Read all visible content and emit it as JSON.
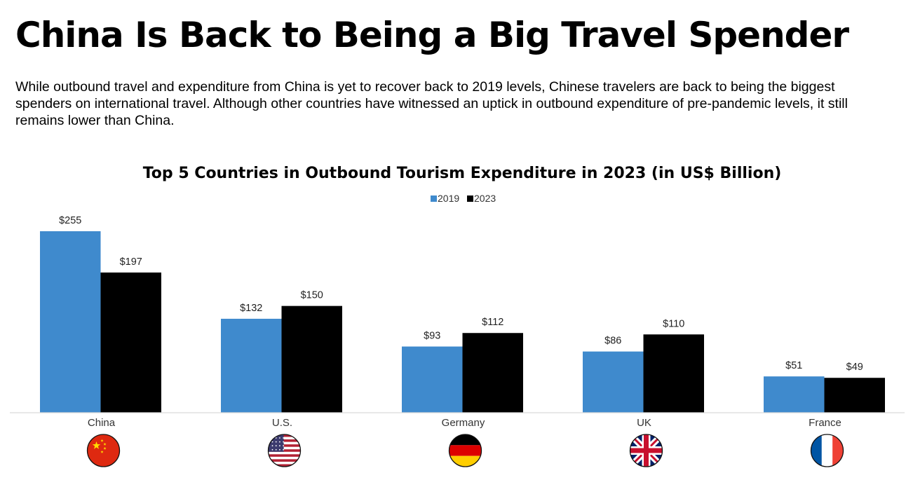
{
  "page": {
    "headline": "China Is Back to Being a Big Travel Spender",
    "subtitle": "While outbound travel and expenditure from China is yet to recover back to 2019 levels, Chinese travelers are back to being the biggest spenders on international travel. Although other countries have witnessed an uptick in outbound expenditure of pre-pandemic levels, it still remains lower than China."
  },
  "chart_data": {
    "type": "bar",
    "title": "Top 5 Countries in Outbound Tourism Expenditure in 2023 (in US$ Billion)",
    "categories": [
      "China",
      "U.S.",
      "Germany",
      "UK",
      "France"
    ],
    "series": [
      {
        "name": "2019",
        "color": "#3f8acd",
        "values": [
          255,
          132,
          93,
          86,
          51
        ],
        "labels": [
          "$255",
          "$132",
          "$93",
          "$86",
          "$51"
        ]
      },
      {
        "name": "2023",
        "color": "#000000",
        "values": [
          197,
          150,
          112,
          110,
          49
        ],
        "labels": [
          "$197",
          "$150",
          "$112",
          "$110",
          "$49"
        ]
      }
    ],
    "ylim": [
      0,
      255
    ],
    "grid": false,
    "legend": "top-center",
    "flags": [
      "china-flag-icon",
      "usa-flag-icon",
      "germany-flag-icon",
      "uk-flag-icon",
      "france-flag-icon"
    ]
  }
}
